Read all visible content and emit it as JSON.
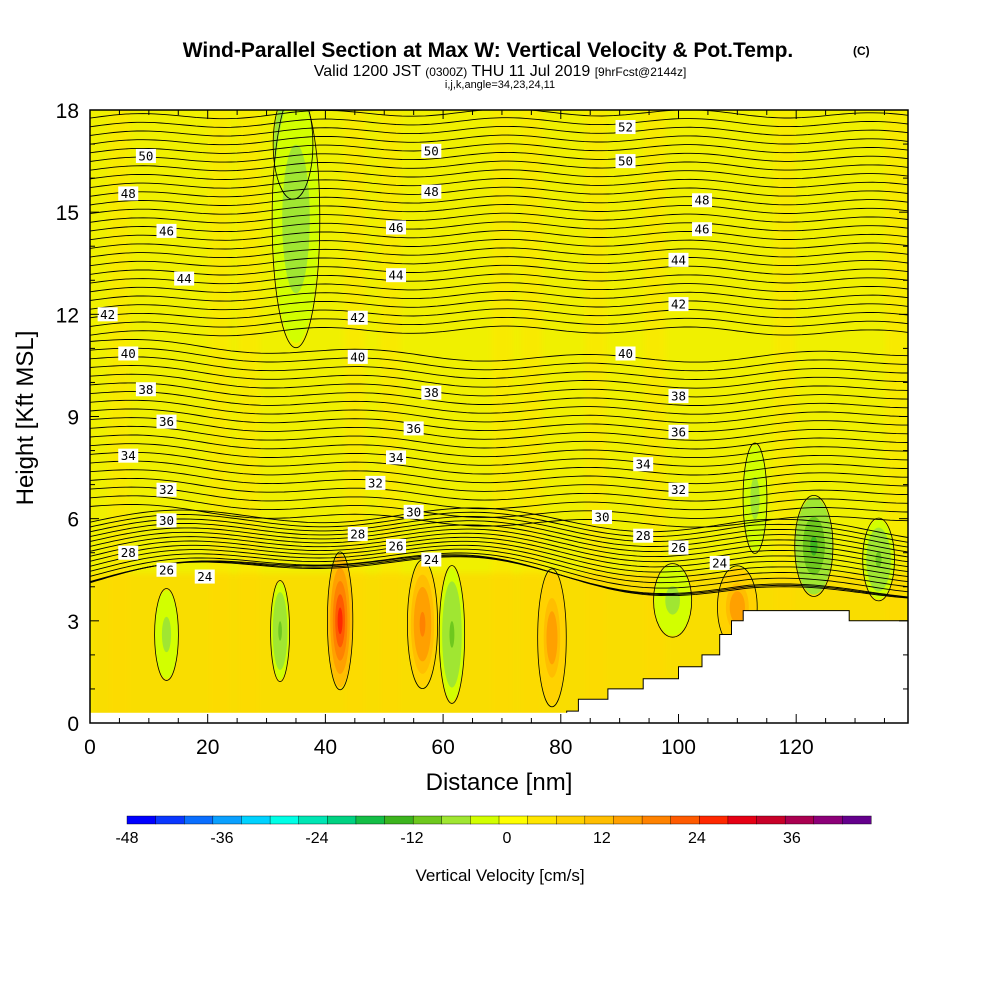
{
  "chart_data": {
    "type": "heatmap",
    "title": "Wind-Parallel Section at Max W: Vertical Velocity & Pot.Temp.",
    "title_mark": "(C)",
    "subtitle_parts": [
      "Valid 1200 JST",
      "(0300Z)",
      "THU 11 Jul 2019",
      "[9hrFcst@2144z]"
    ],
    "subtitle2": "i,j,k,angle=34,23,24,11",
    "xlabel": "Distance [nm]",
    "ylabel": "Height [Kft MSL]",
    "xlim": [
      0,
      139
    ],
    "ylim": [
      0,
      18
    ],
    "xticks": [
      "0",
      "20",
      "40",
      "60",
      "80",
      "100",
      "120"
    ],
    "yticks": [
      "0",
      "3",
      "6",
      "9",
      "12",
      "15",
      "18"
    ],
    "colorbar": {
      "label": "Vertical Velocity [cm/s]",
      "ticks": [
        "-48",
        "-36",
        "-24",
        "-12",
        "0",
        "12",
        "24",
        "36"
      ],
      "min": -48,
      "max": 46,
      "colors": [
        "#0000ff",
        "#0a37ff",
        "#0a6eff",
        "#0aa0ff",
        "#00d2ff",
        "#00ffe6",
        "#00e6b4",
        "#00d282",
        "#14be46",
        "#3cb41e",
        "#6ec81e",
        "#a0e632",
        "#d2ff00",
        "#ffff00",
        "#ffe600",
        "#ffd200",
        "#ffbe00",
        "#ffa000",
        "#ff8200",
        "#ff5a00",
        "#ff2800",
        "#e60014",
        "#c80028",
        "#aa0050",
        "#8c0078",
        "#64008c"
      ]
    },
    "theta_contours": {
      "levels": [
        24,
        26,
        28,
        30,
        32,
        34,
        36,
        38,
        40,
        42,
        44,
        46,
        48,
        50,
        52
      ],
      "labels": [
        {
          "text": "52",
          "x": 91,
          "y": 17.5
        },
        {
          "text": "50",
          "x": 9.5,
          "y": 16.65
        },
        {
          "text": "50",
          "x": 58,
          "y": 16.8
        },
        {
          "text": "50",
          "x": 91,
          "y": 16.5
        },
        {
          "text": "48",
          "x": 6.5,
          "y": 15.55
        },
        {
          "text": "48",
          "x": 58,
          "y": 15.6
        },
        {
          "text": "48",
          "x": 104,
          "y": 15.35
        },
        {
          "text": "46",
          "x": 13,
          "y": 14.45
        },
        {
          "text": "46",
          "x": 52,
          "y": 14.55
        },
        {
          "text": "46",
          "x": 104,
          "y": 14.5
        },
        {
          "text": "44",
          "x": 16,
          "y": 13.05
        },
        {
          "text": "44",
          "x": 52,
          "y": 13.15
        },
        {
          "text": "44",
          "x": 100,
          "y": 13.6
        },
        {
          "text": "42",
          "x": 3,
          "y": 12.0
        },
        {
          "text": "42",
          "x": 45.5,
          "y": 11.9
        },
        {
          "text": "42",
          "x": 100,
          "y": 12.3
        },
        {
          "text": "40",
          "x": 6.5,
          "y": 10.85
        },
        {
          "text": "40",
          "x": 45.5,
          "y": 10.75
        },
        {
          "text": "40",
          "x": 91,
          "y": 10.85
        },
        {
          "text": "38",
          "x": 9.5,
          "y": 9.8
        },
        {
          "text": "38",
          "x": 58,
          "y": 9.7
        },
        {
          "text": "38",
          "x": 100,
          "y": 9.6
        },
        {
          "text": "36",
          "x": 13,
          "y": 8.85
        },
        {
          "text": "36",
          "x": 55,
          "y": 8.65
        },
        {
          "text": "36",
          "x": 100,
          "y": 8.55
        },
        {
          "text": "34",
          "x": 6.5,
          "y": 7.85
        },
        {
          "text": "34",
          "x": 52,
          "y": 7.8
        },
        {
          "text": "34",
          "x": 94,
          "y": 7.6
        },
        {
          "text": "32",
          "x": 13,
          "y": 6.85
        },
        {
          "text": "32",
          "x": 48.5,
          "y": 7.05
        },
        {
          "text": "32",
          "x": 100,
          "y": 6.85
        },
        {
          "text": "30",
          "x": 13,
          "y": 5.95
        },
        {
          "text": "30",
          "x": 55,
          "y": 6.2
        },
        {
          "text": "30",
          "x": 87,
          "y": 6.05
        },
        {
          "text": "28",
          "x": 6.5,
          "y": 5.0
        },
        {
          "text": "28",
          "x": 45.5,
          "y": 5.55
        },
        {
          "text": "28",
          "x": 94,
          "y": 5.5
        },
        {
          "text": "26",
          "x": 13,
          "y": 4.5
        },
        {
          "text": "26",
          "x": 52,
          "y": 5.2
        },
        {
          "text": "26",
          "x": 100,
          "y": 5.15
        },
        {
          "text": "24",
          "x": 19.5,
          "y": 4.3
        },
        {
          "text": "24",
          "x": 58,
          "y": 4.8
        },
        {
          "text": "24",
          "x": 107,
          "y": 4.7
        }
      ]
    },
    "terrain_profile": [
      {
        "x": 81,
        "y": 0.35
      },
      {
        "x": 83,
        "y": 0.35
      },
      {
        "x": 83,
        "y": 0.7
      },
      {
        "x": 88,
        "y": 0.7
      },
      {
        "x": 88,
        "y": 1.0
      },
      {
        "x": 94,
        "y": 1.0
      },
      {
        "x": 94,
        "y": 1.3
      },
      {
        "x": 100,
        "y": 1.3
      },
      {
        "x": 100,
        "y": 1.65
      },
      {
        "x": 104,
        "y": 1.65
      },
      {
        "x": 104,
        "y": 2.0
      },
      {
        "x": 107,
        "y": 2.0
      },
      {
        "x": 107,
        "y": 2.6
      },
      {
        "x": 109,
        "y": 2.6
      },
      {
        "x": 109,
        "y": 3.0
      },
      {
        "x": 111,
        "y": 3.0
      },
      {
        "x": 111,
        "y": 3.3
      },
      {
        "x": 129,
        "y": 3.3
      },
      {
        "x": 129,
        "y": 3.0
      },
      {
        "x": 139,
        "y": 3.0
      }
    ],
    "velocity_features": [
      {
        "x": 42.5,
        "y": 3.0,
        "w_cms": 26,
        "sx": 1.6,
        "sy": 1.5
      },
      {
        "x": 56.5,
        "y": 2.9,
        "w_cms": 20,
        "sx": 1.9,
        "sy": 1.4
      },
      {
        "x": 78.5,
        "y": 2.5,
        "w_cms": 16,
        "sx": 1.8,
        "sy": 1.5
      },
      {
        "x": 110,
        "y": 3.4,
        "w_cms": 17,
        "sx": 2.5,
        "sy": 0.9
      },
      {
        "x": 34.5,
        "y": 17.0,
        "w_cms": -13,
        "sx": 2.5,
        "sy": 1.2
      },
      {
        "x": 35,
        "y": 14.8,
        "w_cms": -7,
        "sx": 3.0,
        "sy": 2.8
      },
      {
        "x": 123,
        "y": 5.2,
        "w_cms": -12,
        "sx": 2.4,
        "sy": 1.1
      },
      {
        "x": 32.3,
        "y": 2.7,
        "w_cms": -9,
        "sx": 1.2,
        "sy": 1.1
      },
      {
        "x": 61.5,
        "y": 2.6,
        "w_cms": -9,
        "sx": 1.6,
        "sy": 1.5
      },
      {
        "x": 13,
        "y": 2.6,
        "w_cms": -6,
        "sx": 1.5,
        "sy": 1.0
      },
      {
        "x": 99,
        "y": 3.6,
        "w_cms": -6,
        "sx": 2.4,
        "sy": 0.8
      },
      {
        "x": 113,
        "y": 6.6,
        "w_cms": -6,
        "sx": 1.5,
        "sy": 1.2
      },
      {
        "x": 134,
        "y": 4.8,
        "w_cms": -9,
        "sx": 2.0,
        "sy": 0.9
      }
    ]
  }
}
